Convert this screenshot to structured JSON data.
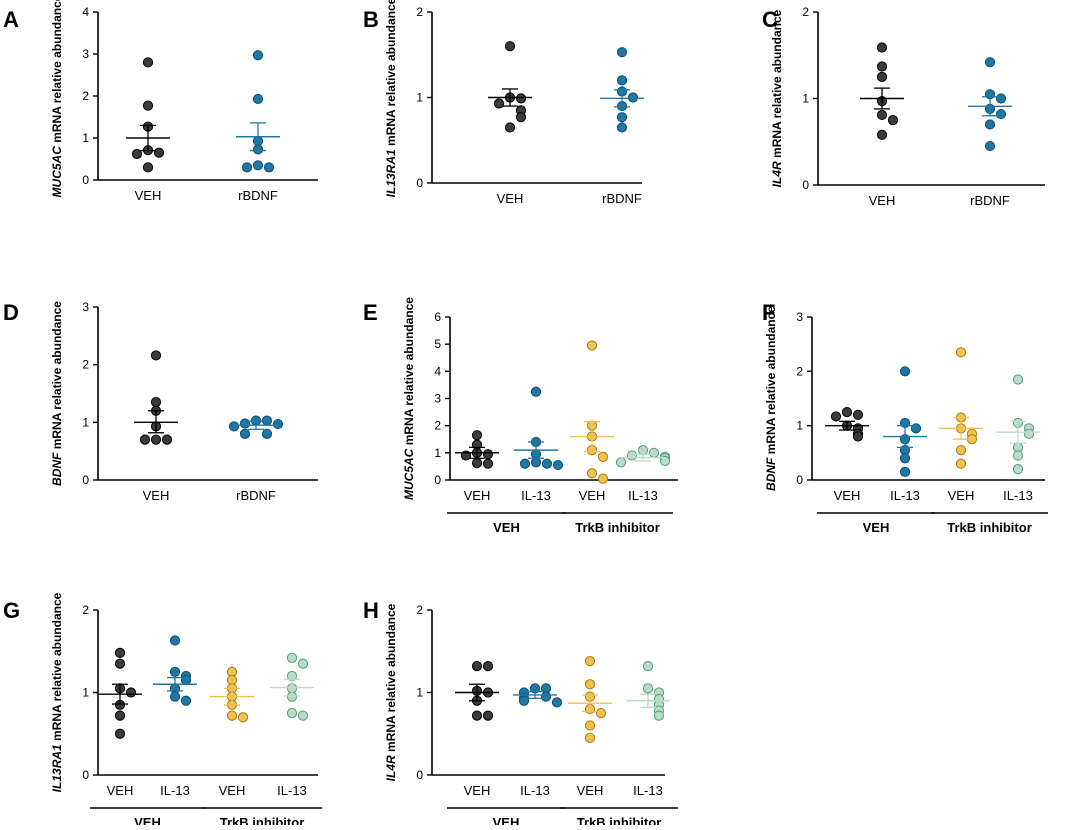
{
  "colors": {
    "VEH_dark": "#3b3b3b",
    "rBDNF": "#1f77a4",
    "IL13": "#1f77a4",
    "TrkB_VEH": "#f2c14e",
    "TrkB_IL13": "#b8dcc8",
    "axis": "#000000"
  },
  "chart_data": [
    {
      "id": "A",
      "type": "scatter",
      "label": "A",
      "ylabel_gene": "MUC5AC",
      "ylabel_rest": " mRNA relative abundance",
      "ylim": [
        0,
        4
      ],
      "yticks": [
        0,
        1,
        2,
        3,
        4
      ],
      "categories": [
        "VEH",
        "rBDNF"
      ],
      "groups": [],
      "series": [
        {
          "name": "VEH",
          "color_key": "VEH_dark",
          "mean": 1.0,
          "sem_low": 0.7,
          "sem_high": 1.3,
          "points": [
            2.8,
            1.77,
            1.27,
            0.71,
            0.65,
            0.62,
            0.3
          ]
        },
        {
          "name": "rBDNF",
          "color_key": "rBDNF",
          "mean": 1.03,
          "sem_low": 0.7,
          "sem_high": 1.36,
          "points": [
            2.97,
            1.93,
            0.93,
            0.73,
            0.35,
            0.3,
            0.3
          ]
        }
      ]
    },
    {
      "id": "B",
      "type": "scatter",
      "label": "B",
      "ylabel_gene": "IL13RA1",
      "ylabel_rest": " mRNA relative abundance",
      "ylim": [
        0,
        2
      ],
      "yticks": [
        0,
        1,
        2
      ],
      "categories": [
        "VEH",
        "rBDNF"
      ],
      "groups": [],
      "series": [
        {
          "name": "VEH",
          "color_key": "VEH_dark",
          "mean": 1.0,
          "sem_low": 0.9,
          "sem_high": 1.1,
          "points": [
            1.6,
            1.0,
            0.99,
            0.93,
            0.85,
            0.77,
            0.65
          ]
        },
        {
          "name": "rBDNF",
          "color_key": "rBDNF",
          "mean": 0.99,
          "sem_low": 0.89,
          "sem_high": 1.09,
          "points": [
            1.53,
            1.2,
            1.07,
            1.0,
            0.9,
            0.77,
            0.65
          ]
        }
      ]
    },
    {
      "id": "C",
      "type": "scatter",
      "label": "C",
      "ylabel_gene": "IL4R",
      "ylabel_rest": " mRNA relative abundance",
      "ylim": [
        0,
        2
      ],
      "yticks": [
        0,
        1,
        2
      ],
      "categories": [
        "VEH",
        "rBDNF"
      ],
      "groups": [],
      "series": [
        {
          "name": "VEH",
          "color_key": "VEH_dark",
          "mean": 1.0,
          "sem_low": 0.88,
          "sem_high": 1.12,
          "points": [
            1.59,
            1.37,
            1.25,
            0.97,
            0.81,
            0.75,
            0.58
          ]
        },
        {
          "name": "rBDNF",
          "color_key": "rBDNF",
          "mean": 0.91,
          "sem_low": 0.8,
          "sem_high": 1.02,
          "points": [
            1.42,
            1.05,
            1.0,
            0.88,
            0.82,
            0.7,
            0.45
          ]
        }
      ]
    },
    {
      "id": "D",
      "type": "scatter",
      "label": "D",
      "ylabel_gene": "BDNF",
      "ylabel_rest": " mRNA relative abundance",
      "ylim": [
        0,
        3
      ],
      "yticks": [
        0,
        1,
        2,
        3
      ],
      "categories": [
        "VEH",
        "rBDNF"
      ],
      "groups": [],
      "series": [
        {
          "name": "VEH",
          "color_key": "VEH_dark",
          "mean": 1.0,
          "sem_low": 0.82,
          "sem_high": 1.2,
          "points": [
            2.16,
            1.35,
            1.2,
            0.93,
            0.7,
            0.7,
            0.7
          ]
        },
        {
          "name": "rBDNF",
          "color_key": "rBDNF",
          "mean": 0.95,
          "sem_low": 0.88,
          "sem_high": 1.02,
          "points": [
            1.03,
            1.03,
            0.98,
            0.97,
            0.93,
            0.8,
            0.8
          ]
        }
      ]
    },
    {
      "id": "E",
      "type": "scatter",
      "label": "E",
      "ylabel_gene": "MUC5AC",
      "ylabel_rest": " mRNA relative abundance",
      "ylim": [
        0,
        6
      ],
      "yticks": [
        0,
        1,
        2,
        3,
        4,
        5,
        6
      ],
      "categories": [
        "VEH",
        "IL-13",
        "VEH",
        "IL-13"
      ],
      "groups": [
        {
          "label": "VEH",
          "span": [
            0,
            1
          ]
        },
        {
          "label": "TrkB inhibitor",
          "span": [
            2,
            3
          ]
        }
      ],
      "series": [
        {
          "name": "VEH",
          "color_key": "VEH_dark",
          "mean": 1.0,
          "sem_low": 0.8,
          "sem_high": 1.2,
          "points": [
            1.65,
            1.3,
            1.0,
            0.95,
            0.9,
            0.62,
            0.6
          ]
        },
        {
          "name": "IL-13",
          "color_key": "IL13",
          "mean": 1.1,
          "sem_low": 0.8,
          "sem_high": 1.4,
          "points": [
            3.25,
            1.4,
            0.95,
            0.65,
            0.6,
            0.6,
            0.55
          ]
        },
        {
          "name": "TrkB VEH",
          "color_key": "TrkB_VEH",
          "mean": 1.6,
          "sem_low": 1.05,
          "sem_high": 2.15,
          "points": [
            4.95,
            2.0,
            1.6,
            1.1,
            0.85,
            0.25,
            0.05
          ]
        },
        {
          "name": "TrkB IL-13",
          "color_key": "TrkB_IL13",
          "mean": 0.82,
          "sem_low": 0.7,
          "sem_high": 0.94,
          "points": [
            1.1,
            1.0,
            0.9,
            0.85,
            0.8,
            0.7,
            0.65
          ]
        }
      ]
    },
    {
      "id": "F",
      "type": "scatter",
      "label": "F",
      "ylabel_gene": "BDNF",
      "ylabel_rest": " mRNA relative abundance",
      "ylim": [
        0,
        3
      ],
      "yticks": [
        0,
        1,
        2,
        3
      ],
      "categories": [
        "VEH",
        "IL-13",
        "VEH",
        "IL-13"
      ],
      "groups": [
        {
          "label": "VEH",
          "span": [
            0,
            1
          ]
        },
        {
          "label": "TrkB inhibitor",
          "span": [
            2,
            3
          ]
        }
      ],
      "series": [
        {
          "name": "VEH",
          "color_key": "VEH_dark",
          "mean": 1.0,
          "sem_low": 0.92,
          "sem_high": 1.08,
          "points": [
            1.25,
            1.2,
            1.17,
            1.0,
            0.95,
            0.85,
            0.8
          ]
        },
        {
          "name": "IL-13",
          "color_key": "IL13",
          "mean": 0.8,
          "sem_low": 0.6,
          "sem_high": 1.0,
          "points": [
            2.0,
            1.05,
            0.95,
            0.75,
            0.55,
            0.4,
            0.15
          ]
        },
        {
          "name": "TrkB VEH",
          "color_key": "TrkB_VEH",
          "mean": 0.95,
          "sem_low": 0.75,
          "sem_high": 1.15,
          "points": [
            2.35,
            1.15,
            0.95,
            0.85,
            0.75,
            0.55,
            0.3
          ]
        },
        {
          "name": "TrkB IL-13",
          "color_key": "TrkB_IL13",
          "mean": 0.88,
          "sem_low": 0.68,
          "sem_high": 1.08,
          "points": [
            1.85,
            1.05,
            0.95,
            0.85,
            0.6,
            0.45,
            0.2
          ]
        }
      ]
    },
    {
      "id": "G",
      "type": "scatter",
      "label": "G",
      "ylabel_gene": "IL13RA1",
      "ylabel_rest": " mRNA relative abundance",
      "ylim": [
        0,
        2
      ],
      "yticks": [
        0,
        1,
        2
      ],
      "categories": [
        "VEH",
        "IL-13",
        "VEH",
        "IL-13"
      ],
      "groups": [
        {
          "label": "VEH",
          "span": [
            0,
            1
          ]
        },
        {
          "label": "TrkB inhibitor",
          "span": [
            2,
            3
          ]
        }
      ],
      "series": [
        {
          "name": "VEH",
          "color_key": "VEH_dark",
          "mean": 0.98,
          "sem_low": 0.86,
          "sem_high": 1.1,
          "points": [
            1.48,
            1.35,
            1.05,
            1.0,
            0.85,
            0.72,
            0.5
          ]
        },
        {
          "name": "IL-13",
          "color_key": "IL13",
          "mean": 1.1,
          "sem_low": 1.02,
          "sem_high": 1.18,
          "points": [
            1.63,
            1.25,
            1.2,
            1.15,
            1.05,
            0.95,
            0.9
          ]
        },
        {
          "name": "TrkB VEH",
          "color_key": "TrkB_VEH",
          "mean": 0.95,
          "sem_low": 0.85,
          "sem_high": 1.05,
          "points": [
            1.25,
            1.15,
            1.05,
            0.95,
            0.85,
            0.72,
            0.7
          ]
        },
        {
          "name": "TrkB IL-13",
          "color_key": "TrkB_IL13",
          "mean": 1.06,
          "sem_low": 0.96,
          "sem_high": 1.16,
          "points": [
            1.42,
            1.35,
            1.2,
            1.05,
            0.95,
            0.75,
            0.72
          ]
        }
      ]
    },
    {
      "id": "H",
      "type": "scatter",
      "label": "H",
      "ylabel_gene": "IL4R",
      "ylabel_rest": " mRNA relative abundance",
      "ylim": [
        0,
        2
      ],
      "yticks": [
        0,
        1,
        2
      ],
      "categories": [
        "VEH",
        "IL-13",
        "VEH",
        "IL-13"
      ],
      "groups": [
        {
          "label": "VEH",
          "span": [
            0,
            1
          ]
        },
        {
          "label": "TrkB inhibitor",
          "span": [
            2,
            3
          ]
        }
      ],
      "series": [
        {
          "name": "VEH",
          "color_key": "VEH_dark",
          "mean": 1.0,
          "sem_low": 0.9,
          "sem_high": 1.1,
          "points": [
            1.32,
            1.32,
            1.02,
            1.0,
            0.9,
            0.72,
            0.72
          ]
        },
        {
          "name": "IL-13",
          "color_key": "IL13",
          "mean": 0.97,
          "sem_low": 0.93,
          "sem_high": 1.01,
          "points": [
            1.05,
            1.05,
            1.0,
            0.95,
            0.93,
            0.9,
            0.88
          ]
        },
        {
          "name": "TrkB VEH",
          "color_key": "TrkB_VEH",
          "mean": 0.87,
          "sem_low": 0.77,
          "sem_high": 0.97,
          "points": [
            1.38,
            1.1,
            0.95,
            0.8,
            0.75,
            0.6,
            0.45
          ]
        },
        {
          "name": "TrkB IL-13",
          "color_key": "TrkB_IL13",
          "mean": 0.9,
          "sem_low": 0.82,
          "sem_high": 0.98,
          "points": [
            1.32,
            1.05,
            1.0,
            0.92,
            0.85,
            0.78,
            0.72
          ]
        }
      ]
    }
  ]
}
